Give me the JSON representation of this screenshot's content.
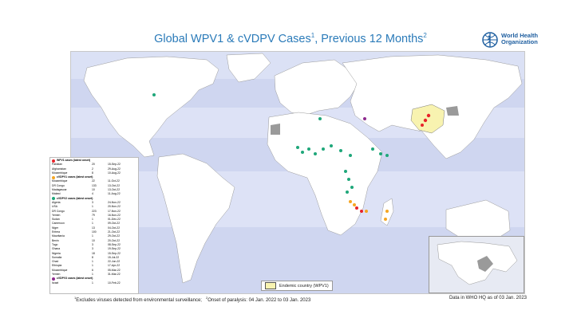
{
  "header": {
    "title_main": "Global WPV1 & cVDPV Cases",
    "title_sup1": "1",
    "title_mid": ", Previous 12 Months",
    "title_sup2": "2"
  },
  "logo": {
    "org_name": "World Health Organization",
    "icon": "who-emblem-icon"
  },
  "legend": {
    "wpv1_heading": "WPV1 cases (latest onset)",
    "wpv1_color": "#e8232a",
    "wpv1_rows": [
      {
        "country": "Pakistan",
        "count": "20",
        "date": "15-Sep-22"
      },
      {
        "country": "Afghanistan",
        "count": "2",
        "date": "29-Aug-22"
      },
      {
        "country": "Mozambique",
        "count": "8",
        "date": "10-Aug-22"
      }
    ],
    "cvdpv1_heading": "cVDPV1 cases (latest onset)",
    "cvdpv1_color": "#f5a623",
    "cvdpv1_rows": [
      {
        "country": "Mozambique",
        "count": "22",
        "date": "11-Oct-22"
      },
      {
        "country": "DR Congo",
        "count": "133",
        "date": "13-Oct-22"
      },
      {
        "country": "Madagascar",
        "count": "10",
        "date": "13-Oct-22"
      },
      {
        "country": "Malawi",
        "count": "4",
        "date": "11-Aug-22"
      }
    ],
    "cvdpv2_heading": "cVDPV2 cases (latest onset)",
    "cvdpv2_color": "#1fa77a",
    "cvdpv2_rows": [
      {
        "country": "Algeria",
        "count": "3",
        "date": "24-Nov-22"
      },
      {
        "country": "USA",
        "count": "1",
        "date": "20-Nov-22"
      },
      {
        "country": "DR Congo",
        "count": "223",
        "date": "17-Nov-22"
      },
      {
        "country": "Yemen",
        "count": "79",
        "date": "16-Nov-22"
      },
      {
        "country": "Sudan",
        "count": "1",
        "date": "01-Dec-22"
      },
      {
        "country": "Cameroon",
        "count": "1",
        "date": "09-Oct-22"
      },
      {
        "country": "Niger",
        "count": "13",
        "date": "04-Oct-22"
      },
      {
        "country": "Eritrea",
        "count": "100",
        "date": "21-Oct-22"
      },
      {
        "country": "Mauritania",
        "count": "1",
        "date": "29-Oct-22"
      },
      {
        "country": "Benin",
        "count": "10",
        "date": "20-Oct-22"
      },
      {
        "country": "Togo",
        "count": "3",
        "date": "08-Sep-22"
      },
      {
        "country": "Ghana",
        "count": "3",
        "date": "19-Sep-22"
      },
      {
        "country": "Nigeria",
        "count": "18",
        "date": "15-Sep-22"
      },
      {
        "country": "Somalia",
        "count": "8",
        "date": "15-Jul-22"
      },
      {
        "country": "Chad",
        "count": "1",
        "date": "22-Jun-22"
      },
      {
        "country": "Ethiopia",
        "count": "1",
        "date": "17-Apr-22"
      },
      {
        "country": "Mozambique",
        "count": "6",
        "date": "05-Mar-22"
      },
      {
        "country": "Yemen",
        "count": "1",
        "date": "31-Mar-22"
      }
    ],
    "cvdpv3_heading": "cVDPV3 cases (latest onset)",
    "cvdpv3_color": "#8e2a8e",
    "cvdpv3_rows": [
      {
        "country": "Israel",
        "count": "1",
        "date": "10-Feb-22"
      }
    ]
  },
  "endemic": {
    "label": "Endemic country (WPV1)",
    "color": "#f8f3b0"
  },
  "footer": {
    "sup1": "1",
    "note1": "Excludes viruses detected from environmental surveillance;",
    "sup2": "2",
    "note2": "Onset of paralysis: 04 Jan. 2022 to 03 Jan. 2023",
    "data_as_of": "Data in WHO HQ as of 03 Jan. 2023"
  },
  "colors": {
    "ocean": "#cfd6f0",
    "land": "#ffffff",
    "border": "#9a9a9a",
    "not_applicable": "#9a9a9a"
  }
}
